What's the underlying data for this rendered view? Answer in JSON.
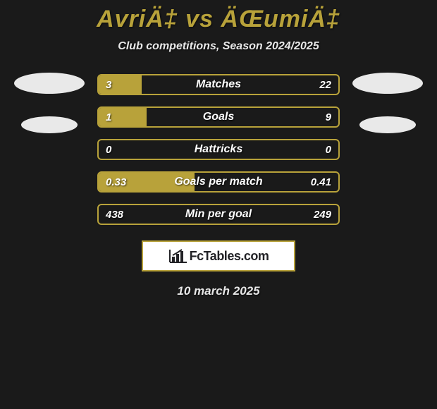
{
  "header": {
    "title": "AvriÄ‡ vs ÄŒumiÄ‡",
    "subtitle": "Club competitions, Season 2024/2025"
  },
  "colors": {
    "accent": "#b8a23a",
    "background": "#1a1a1a",
    "text_light": "#e8e8e8",
    "avatar_bg": "#e9e9e9",
    "logo_bg": "#ffffff",
    "white": "#ffffff"
  },
  "stats": [
    {
      "label": "Matches",
      "left_val": "3",
      "right_val": "22",
      "left_pct": 18,
      "right_pct": 0
    },
    {
      "label": "Goals",
      "left_val": "1",
      "right_val": "9",
      "left_pct": 20,
      "right_pct": 0
    },
    {
      "label": "Hattricks",
      "left_val": "0",
      "right_val": "0",
      "left_pct": 0,
      "right_pct": 0
    },
    {
      "label": "Goals per match",
      "left_val": "0.33",
      "right_val": "0.41",
      "left_pct": 40,
      "right_pct": 0
    },
    {
      "label": "Min per goal",
      "left_val": "438",
      "right_val": "249",
      "left_pct": 0,
      "right_pct": 0
    }
  ],
  "footer": {
    "logo_text": "FcTables.com",
    "date": "10 march 2025"
  }
}
